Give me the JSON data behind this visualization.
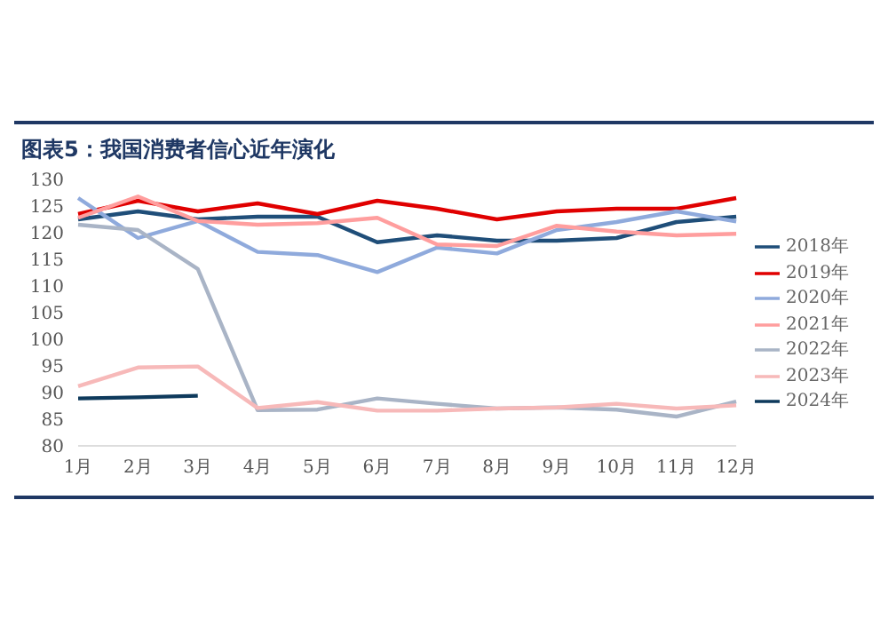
{
  "chart_data": {
    "type": "line",
    "title": "图表5：我国消费者信心近年演化",
    "categories": [
      "1月",
      "2月",
      "3月",
      "4月",
      "5月",
      "6月",
      "7月",
      "8月",
      "9月",
      "10月",
      "11月",
      "12月"
    ],
    "series": [
      {
        "name": "2018年",
        "color": "#1f4e79",
        "values": [
          122.5,
          124,
          122.5,
          123,
          123,
          118.2,
          119.5,
          118.5,
          118.5,
          119,
          122,
          123
        ]
      },
      {
        "name": "2019年",
        "color": "#e00000",
        "values": [
          123.5,
          126,
          124,
          125.5,
          123.5,
          126,
          124.5,
          122.5,
          124,
          124.5,
          124.5,
          126.5
        ]
      },
      {
        "name": "2020年",
        "color": "#8faadc",
        "values": [
          126.5,
          119,
          122.2,
          116.4,
          115.8,
          112.6,
          117.2,
          116.1,
          120.5,
          122,
          124,
          122.1
        ]
      },
      {
        "name": "2021年",
        "color": "#ff9e9e",
        "values": [
          122.8,
          126.8,
          122.2,
          121.5,
          121.8,
          122.8,
          117.8,
          117.5,
          121.3,
          120.2,
          119.5,
          119.8
        ]
      },
      {
        "name": "2022年",
        "color": "#a9b4c6",
        "values": [
          121.5,
          120.5,
          113.2,
          86.7,
          86.8,
          88.9,
          87.9,
          87,
          87.2,
          86.8,
          85.5,
          88.3
        ]
      },
      {
        "name": "2023年",
        "color": "#f7b9b9",
        "values": [
          91.2,
          94.7,
          94.9,
          87.1,
          88.2,
          86.6,
          86.6,
          87,
          87.2,
          87.9,
          87,
          87.6
        ]
      },
      {
        "name": "2024年",
        "color": "#0e3a5c",
        "values": [
          88.9,
          89.1,
          89.4,
          null,
          null,
          null,
          null,
          null,
          null,
          null,
          null,
          null
        ]
      }
    ],
    "ylim": [
      80,
      130
    ],
    "yticks": [
      80,
      85,
      90,
      95,
      100,
      105,
      110,
      115,
      120,
      125,
      130
    ],
    "legend": "right",
    "marker": "none",
    "line_style": "solid"
  }
}
